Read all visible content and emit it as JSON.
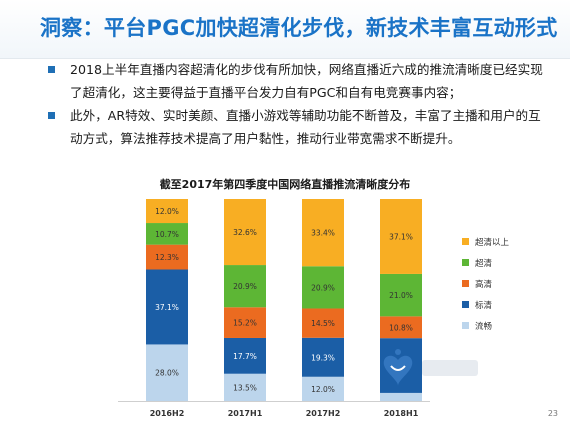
{
  "slide": {
    "title": "洞察：平台PGC加快超清化步伐，新技术丰富互动形式",
    "bullets": [
      "2018上半年直播内容超清化的步伐有所加快，网络直播近六成的推流清晰度已经实现了超清化，这主要得益于直播平台发力自有PGC和自有电竞赛事内容；",
      "此外，AR特效、实时美颜、直播小游戏等辅助功能不断普及，丰富了主播和用户的互动方式，算法推荐技术提高了用户黏性，推动行业带宽需求不断提升。"
    ],
    "page_number": "23"
  },
  "colors": {
    "title": "#1a73c7",
    "bullet": "#1f6fb5"
  },
  "chart_data": {
    "type": "bar",
    "stacked": true,
    "title": "截至2017年第四季度中国网络直播推流清晰度分布",
    "categories": [
      "2016H2",
      "2017H1",
      "2017H2",
      "2018H1"
    ],
    "ylim": [
      0,
      100
    ],
    "grid": false,
    "legend_position": "right",
    "series": [
      {
        "name": "流畅",
        "color": "#bcd5ec",
        "values": [
          28.0,
          13.5,
          12.0,
          4.0
        ],
        "labels": [
          "28.0%",
          "13.5%",
          "12.0%",
          ""
        ]
      },
      {
        "name": "标清",
        "color": "#1b5ea6",
        "values": [
          37.1,
          17.7,
          19.3,
          27.1
        ],
        "labels": [
          "37.1%",
          "17.7%",
          "19.3%",
          ""
        ]
      },
      {
        "name": "高清",
        "color": "#eb6b20",
        "values": [
          12.3,
          15.2,
          14.5,
          10.8
        ],
        "labels": [
          "12.3%",
          "15.2%",
          "14.5%",
          "10.8%"
        ]
      },
      {
        "name": "超清",
        "color": "#5db635",
        "values": [
          10.7,
          20.9,
          20.9,
          21.0
        ],
        "labels": [
          "10.7%",
          "20.9%",
          "20.9%",
          "21.0%"
        ]
      },
      {
        "name": "超清以上",
        "color": "#f8ae23",
        "values": [
          12.0,
          32.6,
          33.4,
          37.1
        ],
        "labels": [
          "12.0%",
          "32.6%",
          "33.4%",
          "37.1%"
        ]
      }
    ]
  }
}
